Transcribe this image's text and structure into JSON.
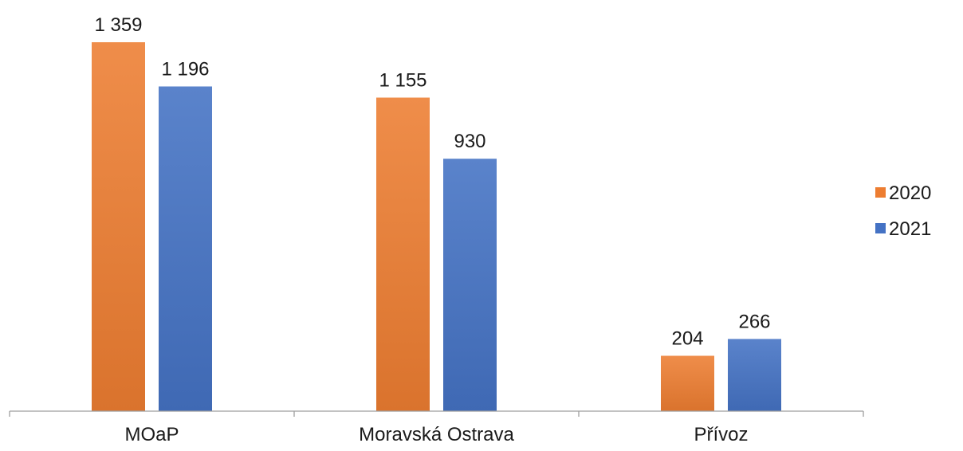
{
  "chart_data": {
    "type": "bar",
    "title": "",
    "xlabel": "",
    "ylabel": "",
    "categories": [
      "MOaP",
      "Moravská Ostrava",
      "Přívoz"
    ],
    "series": [
      {
        "name": "2020",
        "values": [
          1359,
          1155,
          204
        ],
        "labels": [
          "1 359",
          "1 155",
          "204"
        ],
        "color": "#ED7D31"
      },
      {
        "name": "2021",
        "values": [
          1196,
          930,
          266
        ],
        "labels": [
          "1 196",
          "930",
          "266"
        ],
        "color": "#4472C4"
      }
    ],
    "ylim": [
      0,
      1359
    ],
    "grid": false,
    "legend_position": "right"
  }
}
